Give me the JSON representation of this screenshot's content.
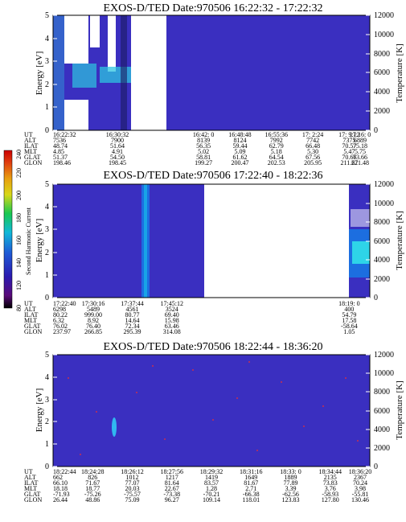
{
  "chart_data": [
    {
      "type": "heatmap",
      "title": "EXOS-D/TED   Date:970506  16:22:32 - 17:22:32",
      "ylabel": "Energy [eV]",
      "y2label": "Temperature [K]",
      "ylim": [
        0,
        5
      ],
      "y2lim": [
        0,
        12000
      ],
      "yticks": [
        "0",
        "1",
        "2",
        "3",
        "4",
        "5"
      ],
      "y2ticks": [
        "0",
        "2000",
        "4000",
        "6000",
        "8000",
        "10000",
        "12000"
      ],
      "xlim": [
        "16:22:32",
        "17:22:32"
      ],
      "times": [
        "16:22:32",
        "16:30:32",
        "16:42: 0",
        "16:48:48",
        "16:55:36",
        "17: 2:24",
        "17: 9:12",
        "17:16: 0"
      ],
      "rows": [
        {
          "name": "UT",
          "values": [
            "16:22:32",
            "16:30:32",
            "16:42: 0",
            "16:48:48",
            "16:55:36",
            "17: 2:24",
            "17: 9:12",
            "17:16: 0"
          ]
        },
        {
          "name": "ALT",
          "values": [
            "7536",
            "7900",
            "8139",
            "8124",
            "7992",
            "7742",
            "7375",
            "6889"
          ]
        },
        {
          "name": "ILAT",
          "values": [
            "48.74",
            "51.64",
            "56.35",
            "59.44",
            "62.79",
            "66.48",
            "70.57",
            "75.18"
          ]
        },
        {
          "name": "MLT",
          "values": [
            "4.85",
            "4.91",
            "5.02",
            "5.09",
            "5.18",
            "5.30",
            "5.47",
            "5.75"
          ]
        },
        {
          "name": "GLAT",
          "values": [
            "51.37",
            "54.50",
            "58.81",
            "61.62",
            "64.54",
            "67.56",
            "70.66",
            "73.66"
          ]
        },
        {
          "name": "GLON",
          "values": [
            "198.46",
            "198.45",
            "199.27",
            "200.47",
            "202.53",
            "205.95",
            "211.67",
            "221.48"
          ]
        }
      ]
    },
    {
      "type": "heatmap",
      "title": "EXOS-D/TED   Date:970506  17:22:40 - 18:22:36",
      "ylabel": "Energy [eV]",
      "y2label": "Temperature [K]",
      "ylim": [
        0,
        5
      ],
      "y2lim": [
        0,
        12000
      ],
      "yticks": [
        "0",
        "1",
        "2",
        "3",
        "4",
        "5"
      ],
      "y2ticks": [
        "0",
        "2000",
        "4000",
        "6000",
        "8000",
        "10000",
        "12000"
      ],
      "xlim": [
        "17:22:40",
        "18:22:36"
      ],
      "times": [
        "17:22:40",
        "17:30:16",
        "17:37:44",
        "17:45:12",
        "18:19: 0"
      ],
      "rows": [
        {
          "name": "UT",
          "values": [
            "17:22:40",
            "17:30:16",
            "17:37:44",
            "17:45:12",
            "18:19: 0"
          ]
        },
        {
          "name": "ALT",
          "values": [
            "6298",
            "5489",
            "4561",
            "3524",
            "400"
          ]
        },
        {
          "name": "ILAT",
          "values": [
            "80.22",
            "999.00",
            "80.77",
            "69.40",
            "54.79"
          ]
        },
        {
          "name": "MLT",
          "values": [
            "6.32",
            "8.92",
            "14.64",
            "15.98",
            "17.58"
          ]
        },
        {
          "name": "GLAT",
          "values": [
            "76.02",
            "76.40",
            "72.34",
            "63.46",
            "-58.64"
          ]
        },
        {
          "name": "GLON",
          "values": [
            "237.97",
            "266.85",
            "295.39",
            "314.08",
            "1.05"
          ]
        }
      ],
      "colorbar": {
        "label": "Second Harmonic Current",
        "ticks": [
          "80",
          "120",
          "140",
          "160",
          "180",
          "200",
          "220",
          "240"
        ],
        "colors": [
          "#000000",
          "#5a0a7a",
          "#2a1ab0",
          "#1e5ad6",
          "#10b8d8",
          "#18c850",
          "#d8d818",
          "#e8a010",
          "#e04010",
          "#cc0000"
        ]
      }
    },
    {
      "type": "heatmap",
      "title": "EXOS-D/TED   Date:970506  18:22:44 - 18:36:20",
      "ylabel": "Energy [eV]",
      "y2label": "Temperature [K]",
      "ylim": [
        0,
        5
      ],
      "y2lim": [
        0,
        12000
      ],
      "yticks": [
        "0",
        "1",
        "2",
        "3",
        "4",
        "5"
      ],
      "y2ticks": [
        "0",
        "2000",
        "4000",
        "6000",
        "8000",
        "10000",
        "12000"
      ],
      "xlim": [
        "18:22:44",
        "18:36:20"
      ],
      "times": [
        "18:22:44",
        "18:24:28",
        "18:26:12",
        "18:27:56",
        "18:29:32",
        "18:31:16",
        "18:33: 0",
        "18:34:44",
        "18:36:20"
      ],
      "rows": [
        {
          "name": "UT",
          "values": [
            "18:22:44",
            "18:24:28",
            "18:26:12",
            "18:27:56",
            "18:29:32",
            "18:31:16",
            "18:33: 0",
            "18:34:44",
            "18:36:20"
          ]
        },
        {
          "name": "ALT",
          "values": [
            "662",
            "826",
            "1012",
            "1217",
            "1419",
            "1649",
            "1889",
            "2135",
            "2367"
          ]
        },
        {
          "name": "ILAT",
          "values": [
            "66.10",
            "71.67",
            "77.07",
            "81.64",
            "83.57",
            "81.67",
            "77.89",
            "73.83",
            "70.24"
          ]
        },
        {
          "name": "MLT",
          "values": [
            "18.18",
            "18.77",
            "20.03",
            "22.67",
            "1.28",
            "2.71",
            "3.39",
            "3.76",
            "3.98"
          ]
        },
        {
          "name": "GLAT",
          "values": [
            "-71.93",
            "-75.26",
            "-75.57",
            "-73.38",
            "-70.21",
            "-66.38",
            "-62.56",
            "-58.93",
            "-55.81"
          ]
        },
        {
          "name": "GLON",
          "values": [
            "26.44",
            "48.86",
            "75.09",
            "96.27",
            "109.14",
            "118.01",
            "123.83",
            "127.80",
            "130.46"
          ]
        }
      ]
    }
  ]
}
